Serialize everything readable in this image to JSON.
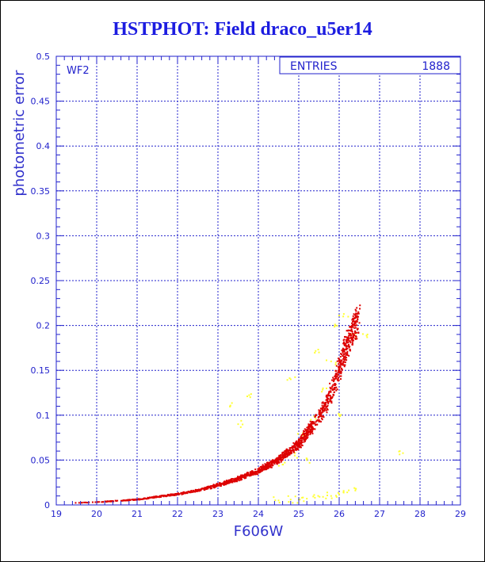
{
  "chart_data": {
    "type": "scatter",
    "title": "HSTPHOT: Field draco_u5er14",
    "xlabel": "F606W",
    "ylabel": "photometric error",
    "panel_label": "WF2",
    "stats_box": {
      "label": "ENTRIES",
      "value": "1888"
    },
    "xlim": [
      19,
      29
    ],
    "ylim": [
      0,
      0.5
    ],
    "xticks": [
      "19",
      "20",
      "21",
      "22",
      "23",
      "24",
      "25",
      "26",
      "27",
      "28",
      "29"
    ],
    "yticks": [
      "0",
      "0.05",
      "0.1",
      "0.15",
      "0.2",
      "0.25",
      "0.3",
      "0.35",
      "0.4",
      "0.45",
      "0.5"
    ],
    "grid": true,
    "series": [
      {
        "color": "#dd0000",
        "trend": [
          [
            19.2,
            0.002
          ],
          [
            20,
            0.003
          ],
          [
            21,
            0.006
          ],
          [
            22,
            0.012
          ],
          [
            22.5,
            0.016
          ],
          [
            23,
            0.022
          ],
          [
            23.5,
            0.029
          ],
          [
            24,
            0.038
          ],
          [
            24.5,
            0.05
          ],
          [
            25,
            0.068
          ],
          [
            25.3,
            0.085
          ],
          [
            25.6,
            0.105
          ],
          [
            25.8,
            0.125
          ],
          [
            26,
            0.15
          ],
          [
            26.2,
            0.18
          ],
          [
            26.5,
            0.21
          ]
        ]
      },
      {
        "color": "#ffff33",
        "points": [
          [
            24.5,
            0.005
          ],
          [
            24.8,
            0.006
          ],
          [
            25,
            0.006
          ],
          [
            25.2,
            0.007
          ],
          [
            25.4,
            0.008
          ],
          [
            25.6,
            0.009
          ],
          [
            25.8,
            0.01
          ],
          [
            26,
            0.012
          ],
          [
            26.2,
            0.014
          ],
          [
            26.4,
            0.016
          ],
          [
            24.6,
            0.045
          ],
          [
            24.9,
            0.055
          ],
          [
            25.1,
            0.08
          ],
          [
            25.3,
            0.095
          ],
          [
            25.6,
            0.13
          ],
          [
            25.8,
            0.16
          ],
          [
            25.9,
            0.2
          ],
          [
            26.1,
            0.21
          ],
          [
            26.3,
            0.19
          ],
          [
            26.7,
            0.19
          ],
          [
            27.5,
            0.06
          ],
          [
            23.5,
            0.09
          ],
          [
            23.8,
            0.12
          ],
          [
            23.3,
            0.11
          ],
          [
            24.8,
            0.14
          ],
          [
            25.5,
            0.17
          ],
          [
            26.0,
            0.1
          ],
          [
            25.2,
            0.05
          ]
        ]
      }
    ]
  },
  "colors": {
    "axis": "#2222cc",
    "grid": "#2222cc",
    "title": "#1c1ce0",
    "label": "#3333cc"
  }
}
